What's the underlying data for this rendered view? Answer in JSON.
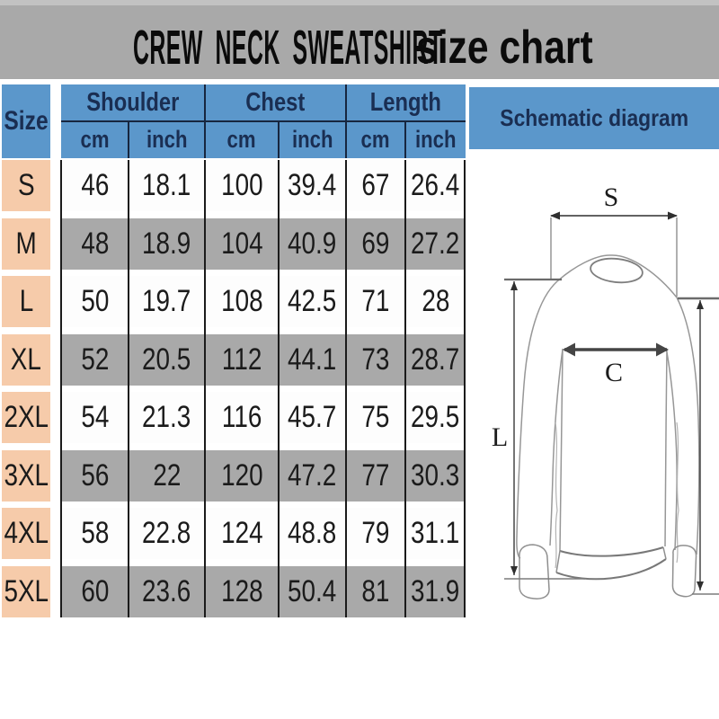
{
  "title": {
    "main": "CREW NECK SWEATSHIRT",
    "suffix": "size chart"
  },
  "size_table": {
    "corner_header": "Size",
    "measure_groups": [
      "Shoulder",
      "Chest",
      "Length"
    ],
    "unit_headers": [
      "cm",
      "inch",
      "cm",
      "inch",
      "cm",
      "inch"
    ],
    "rows": [
      {
        "size": "S",
        "values": [
          "46",
          "18.1",
          "100",
          "39.4",
          "67",
          "26.4"
        ]
      },
      {
        "size": "M",
        "values": [
          "48",
          "18.9",
          "104",
          "40.9",
          "69",
          "27.2"
        ]
      },
      {
        "size": "L",
        "values": [
          "50",
          "19.7",
          "108",
          "42.5",
          "71",
          "28"
        ]
      },
      {
        "size": "XL",
        "values": [
          "52",
          "20.5",
          "112",
          "44.1",
          "73",
          "28.7"
        ]
      },
      {
        "size": "2XL",
        "values": [
          "54",
          "21.3",
          "116",
          "45.7",
          "75",
          "29.5"
        ]
      },
      {
        "size": "3XL",
        "values": [
          "56",
          "22",
          "120",
          "47.2",
          "77",
          "30.3"
        ]
      },
      {
        "size": "4XL",
        "values": [
          "58",
          "22.8",
          "124",
          "48.8",
          "79",
          "31.1"
        ]
      },
      {
        "size": "5XL",
        "values": [
          "60",
          "23.6",
          "128",
          "50.4",
          "81",
          "31.9"
        ]
      }
    ]
  },
  "schematic": {
    "title": "Schematic diagram",
    "labels": {
      "shoulder": "S",
      "chest": "C",
      "length": "L"
    }
  },
  "colors": {
    "title_bar_gray": "#a9a9a9",
    "header_blue": "#5b97cb",
    "header_text_navy": "#1a2e52",
    "size_column_peach": "#f6cbaa",
    "row_gray": "#a9a9a9",
    "row_white": "#fdfdfd",
    "grid_line": "#1b1b1b"
  },
  "chart_data": {
    "type": "table",
    "title": "CREW NECK SWEATSHIRT size chart",
    "columns": [
      "Size",
      "Shoulder cm",
      "Shoulder inch",
      "Chest cm",
      "Chest inch",
      "Length cm",
      "Length inch"
    ],
    "rows": [
      [
        "S",
        46,
        18.1,
        100,
        39.4,
        67,
        26.4
      ],
      [
        "M",
        48,
        18.9,
        104,
        40.9,
        69,
        27.2
      ],
      [
        "L",
        50,
        19.7,
        108,
        42.5,
        71,
        28
      ],
      [
        "XL",
        52,
        20.5,
        112,
        44.1,
        73,
        28.7
      ],
      [
        "2XL",
        54,
        21.3,
        116,
        45.7,
        75,
        29.5
      ],
      [
        "3XL",
        56,
        22,
        120,
        47.2,
        77,
        30.3
      ],
      [
        "4XL",
        58,
        22.8,
        124,
        48.8,
        79,
        31.1
      ],
      [
        "5XL",
        60,
        23.6,
        128,
        50.4,
        81,
        31.9
      ]
    ]
  }
}
